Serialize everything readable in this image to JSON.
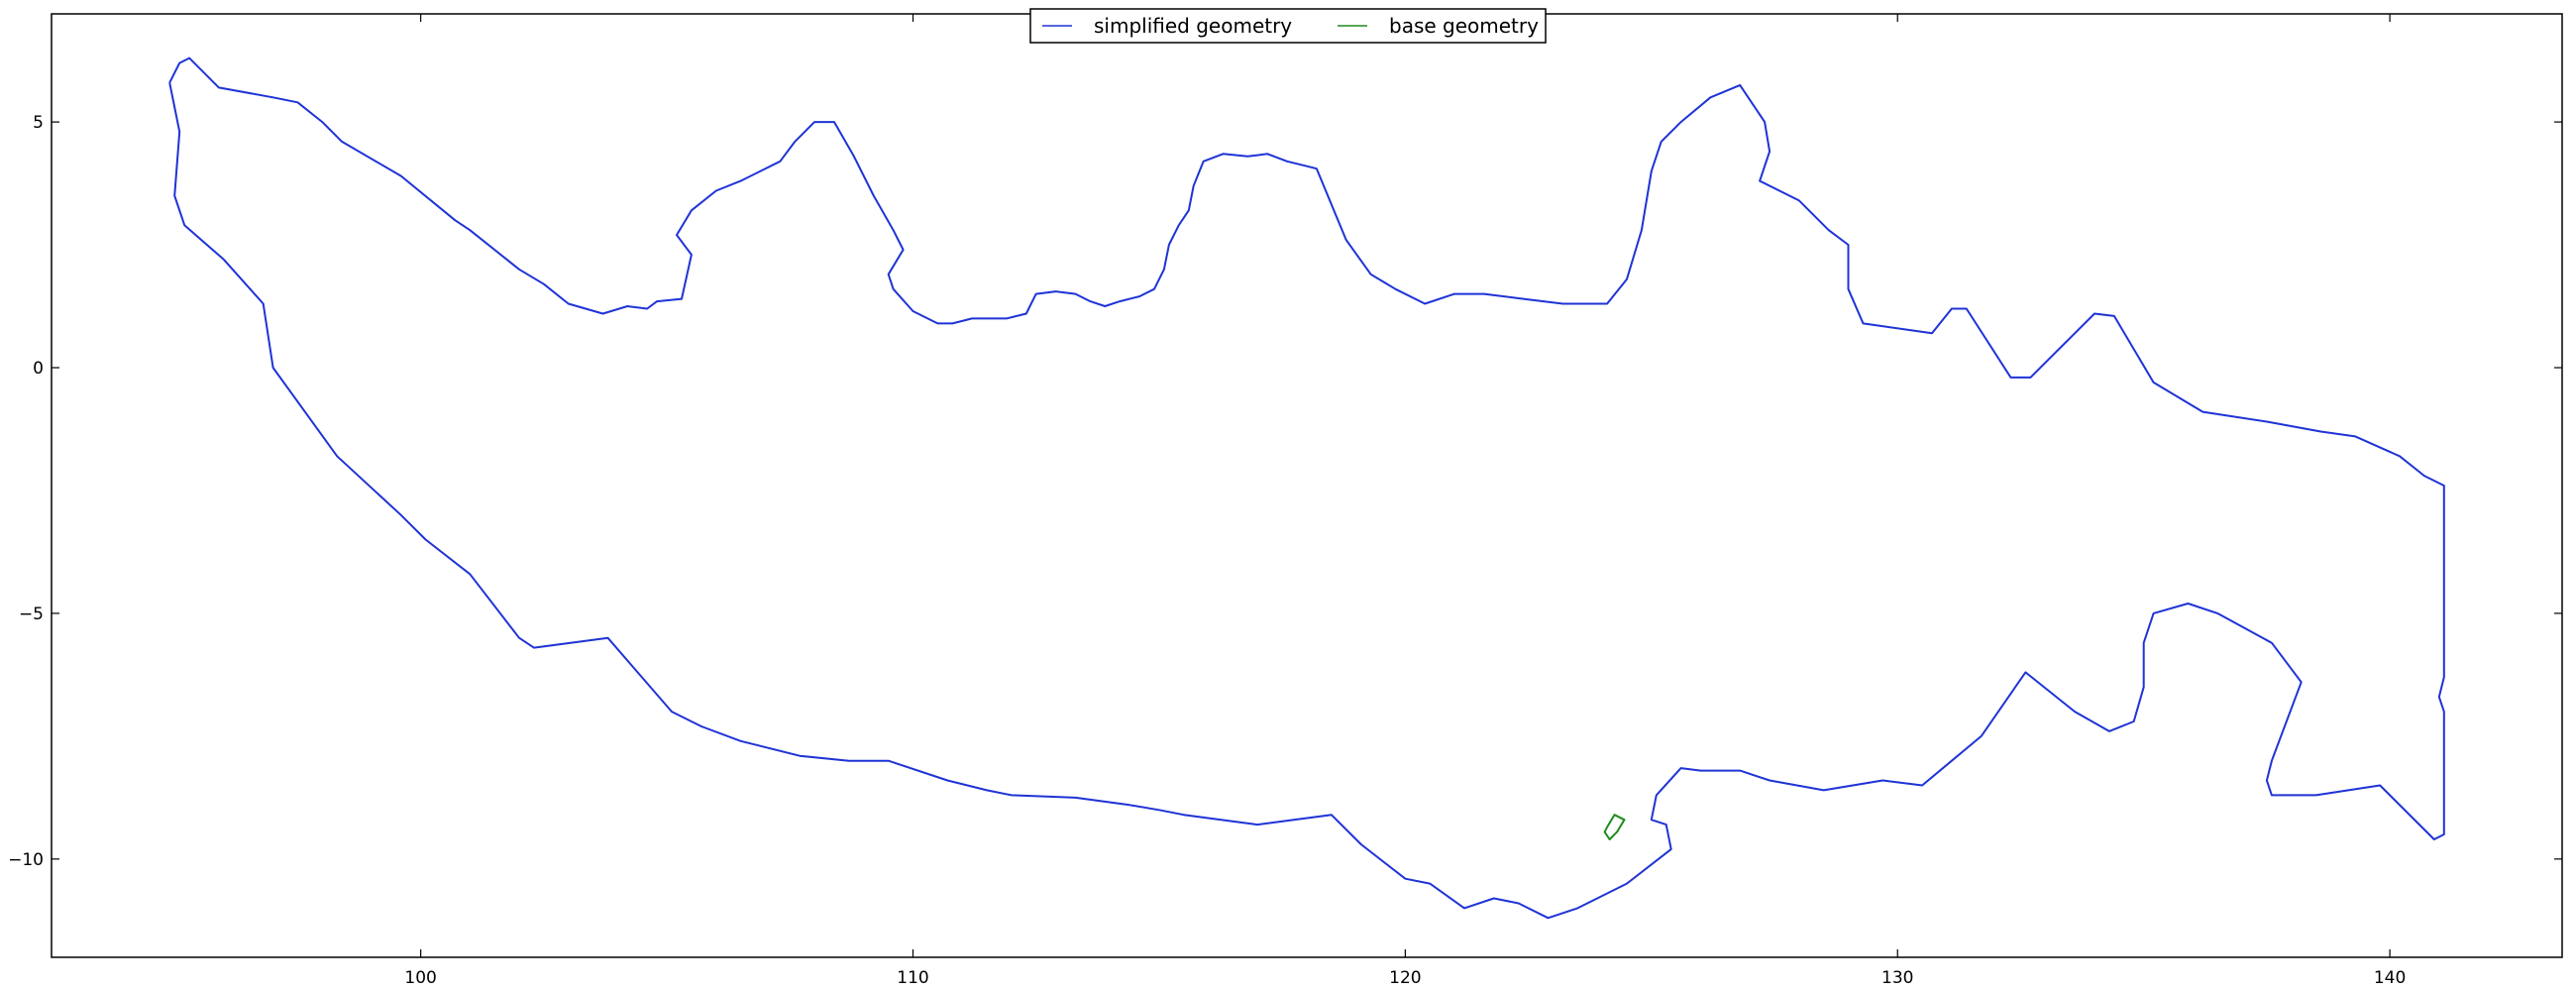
{
  "chart_data": {
    "type": "line",
    "title": "",
    "xlabel": "",
    "ylabel": "",
    "xlim": [
      92.5,
      143.5
    ],
    "ylim": [
      -12.0,
      7.2
    ],
    "xticks": [
      100,
      110,
      120,
      130,
      140
    ],
    "yticks": [
      5,
      0,
      -5,
      -10
    ],
    "xtick_labels": [
      "100",
      "110",
      "120",
      "130",
      "140"
    ],
    "ytick_labels": [
      "5",
      "0",
      "−5",
      "−10"
    ],
    "grid": false,
    "legend": {
      "placement": "top-center",
      "columns": 2
    },
    "series": [
      {
        "name": "simplified geometry",
        "color": "#1f33d6",
        "points": [
          [
            94.9,
            5.8
          ],
          [
            95.1,
            6.2
          ],
          [
            95.3,
            6.3
          ],
          [
            95.9,
            5.7
          ],
          [
            97.0,
            5.5
          ],
          [
            97.5,
            5.4
          ],
          [
            98.0,
            5.0
          ],
          [
            98.4,
            4.6
          ],
          [
            99.6,
            3.9
          ],
          [
            100.7,
            3.0
          ],
          [
            101.0,
            2.8
          ],
          [
            102.0,
            2.0
          ],
          [
            102.5,
            1.7
          ],
          [
            103.0,
            1.3
          ],
          [
            103.7,
            1.1
          ],
          [
            104.2,
            1.25
          ],
          [
            104.6,
            1.2
          ],
          [
            104.8,
            1.35
          ],
          [
            105.3,
            1.4
          ],
          [
            105.5,
            2.3
          ],
          [
            105.2,
            2.7
          ],
          [
            105.5,
            3.2
          ],
          [
            106.0,
            3.6
          ],
          [
            106.5,
            3.8
          ],
          [
            107.3,
            4.2
          ],
          [
            107.6,
            4.6
          ],
          [
            108.0,
            5.0
          ],
          [
            108.4,
            5.0
          ],
          [
            108.8,
            4.3
          ],
          [
            109.2,
            3.5
          ],
          [
            109.6,
            2.8
          ],
          [
            109.8,
            2.4
          ],
          [
            109.5,
            1.9
          ],
          [
            109.6,
            1.6
          ],
          [
            110.0,
            1.15
          ],
          [
            110.5,
            0.9
          ],
          [
            110.8,
            0.9
          ],
          [
            111.2,
            1.0
          ],
          [
            111.6,
            1.0
          ],
          [
            111.9,
            1.0
          ],
          [
            112.3,
            1.1
          ],
          [
            112.5,
            1.5
          ],
          [
            112.9,
            1.55
          ],
          [
            113.3,
            1.5
          ],
          [
            113.6,
            1.35
          ],
          [
            113.9,
            1.25
          ],
          [
            114.2,
            1.35
          ],
          [
            114.6,
            1.45
          ],
          [
            114.9,
            1.6
          ],
          [
            115.1,
            2.0
          ],
          [
            115.2,
            2.5
          ],
          [
            115.4,
            2.9
          ],
          [
            115.6,
            3.2
          ],
          [
            115.7,
            3.7
          ],
          [
            115.9,
            4.2
          ],
          [
            116.3,
            4.35
          ],
          [
            116.8,
            4.3
          ],
          [
            117.2,
            4.35
          ],
          [
            117.6,
            4.2
          ],
          [
            118.0,
            4.1
          ],
          [
            118.2,
            4.05
          ],
          [
            118.8,
            2.6
          ],
          [
            119.3,
            1.9
          ],
          [
            119.8,
            1.6
          ],
          [
            120.4,
            1.3
          ],
          [
            121.0,
            1.5
          ],
          [
            121.6,
            1.5
          ],
          [
            122.4,
            1.4
          ],
          [
            123.2,
            1.3
          ],
          [
            124.1,
            1.3
          ],
          [
            124.5,
            1.8
          ],
          [
            124.8,
            2.8
          ],
          [
            125.0,
            4.0
          ],
          [
            125.2,
            4.6
          ],
          [
            125.6,
            5.0
          ],
          [
            126.2,
            5.5
          ],
          [
            126.8,
            5.75
          ],
          [
            127.3,
            5.0
          ],
          [
            127.4,
            4.4
          ],
          [
            127.2,
            3.8
          ],
          [
            128.0,
            3.4
          ],
          [
            128.6,
            2.8
          ],
          [
            129.0,
            2.5
          ],
          [
            129.0,
            1.6
          ],
          [
            129.3,
            0.9
          ],
          [
            130.7,
            0.7
          ],
          [
            131.1,
            1.2
          ],
          [
            131.4,
            1.2
          ],
          [
            132.3,
            -0.2
          ],
          [
            132.7,
            -0.2
          ],
          [
            134.0,
            1.1
          ],
          [
            134.4,
            1.05
          ],
          [
            135.2,
            -0.3
          ],
          [
            136.2,
            -0.9
          ],
          [
            137.5,
            -1.1
          ],
          [
            138.6,
            -1.3
          ],
          [
            139.3,
            -1.4
          ],
          [
            140.2,
            -1.8
          ],
          [
            140.7,
            -2.2
          ],
          [
            141.1,
            -2.4
          ],
          [
            141.1,
            -6.3
          ],
          [
            141.0,
            -6.7
          ],
          [
            141.1,
            -7.0
          ],
          [
            141.1,
            -9.5
          ],
          [
            140.9,
            -9.6
          ],
          [
            139.8,
            -8.5
          ],
          [
            138.5,
            -8.7
          ],
          [
            137.6,
            -8.7
          ],
          [
            137.5,
            -8.4
          ],
          [
            137.6,
            -8.0
          ],
          [
            138.2,
            -6.4
          ],
          [
            137.6,
            -5.6
          ],
          [
            136.5,
            -5.0
          ],
          [
            135.9,
            -4.8
          ],
          [
            135.2,
            -5.0
          ],
          [
            135.0,
            -5.6
          ],
          [
            135.0,
            -6.5
          ],
          [
            134.8,
            -7.2
          ],
          [
            134.3,
            -7.4
          ],
          [
            133.6,
            -7.0
          ],
          [
            132.6,
            -6.2
          ],
          [
            131.7,
            -7.5
          ],
          [
            131.1,
            -8.0
          ],
          [
            130.5,
            -8.5
          ],
          [
            129.7,
            -8.4
          ],
          [
            128.5,
            -8.6
          ],
          [
            127.4,
            -8.4
          ],
          [
            126.8,
            -8.2
          ],
          [
            126.0,
            -8.2
          ],
          [
            125.6,
            -8.15
          ],
          [
            125.1,
            -8.7
          ],
          [
            125.0,
            -9.2
          ],
          [
            125.3,
            -9.3
          ],
          [
            125.4,
            -9.8
          ],
          [
            124.5,
            -10.5
          ],
          [
            123.5,
            -11.0
          ],
          [
            122.9,
            -11.2
          ],
          [
            122.3,
            -10.9
          ],
          [
            121.8,
            -10.8
          ],
          [
            121.2,
            -11.0
          ],
          [
            120.5,
            -10.5
          ],
          [
            120.0,
            -10.4
          ],
          [
            119.1,
            -9.7
          ],
          [
            118.5,
            -9.1
          ],
          [
            117.0,
            -9.3
          ],
          [
            115.5,
            -9.1
          ],
          [
            115.0,
            -9.0
          ],
          [
            114.4,
            -8.9
          ],
          [
            113.3,
            -8.75
          ],
          [
            112.0,
            -8.7
          ],
          [
            111.5,
            -8.6
          ],
          [
            110.7,
            -8.4
          ],
          [
            109.5,
            -8.0
          ],
          [
            108.7,
            -8.0
          ],
          [
            107.7,
            -7.9
          ],
          [
            106.5,
            -7.6
          ],
          [
            105.7,
            -7.3
          ],
          [
            105.1,
            -7.0
          ],
          [
            103.8,
            -5.5
          ],
          [
            102.3,
            -5.7
          ],
          [
            102.0,
            -5.5
          ],
          [
            101.0,
            -4.2
          ],
          [
            100.1,
            -3.5
          ],
          [
            99.6,
            -3.0
          ],
          [
            98.3,
            -1.8
          ],
          [
            97.0,
            0.0
          ],
          [
            96.8,
            1.3
          ],
          [
            96.0,
            2.2
          ],
          [
            95.2,
            2.9
          ],
          [
            95.0,
            3.5
          ],
          [
            95.1,
            4.8
          ],
          [
            94.9,
            5.8
          ]
        ]
      },
      {
        "name": "base geometry",
        "color": "#1e8c1e",
        "points": [
          [
            124.1,
            -9.35
          ],
          [
            124.25,
            -9.1
          ],
          [
            124.45,
            -9.2
          ],
          [
            124.3,
            -9.45
          ],
          [
            124.15,
            -9.6
          ],
          [
            124.05,
            -9.45
          ],
          [
            124.1,
            -9.35
          ]
        ]
      }
    ]
  }
}
